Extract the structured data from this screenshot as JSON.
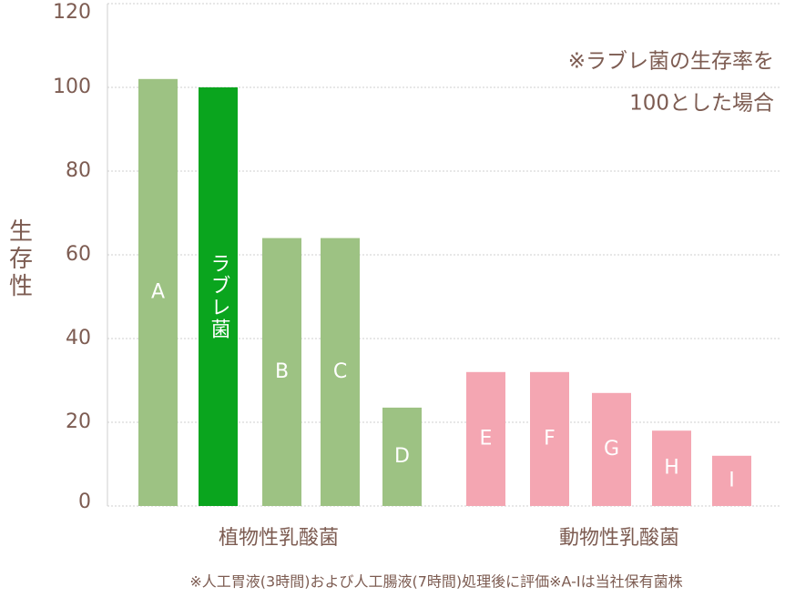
{
  "chart_data": {
    "type": "bar",
    "y_label": "生存性",
    "annotation": [
      "※ラブレ菌の生存率を",
      "100とした場合"
    ],
    "categories": [
      "A",
      "ラブレ菌",
      "B",
      "C",
      "D",
      "E",
      "F",
      "G",
      "H",
      "I"
    ],
    "values": [
      102,
      100,
      64,
      64,
      23.5,
      32,
      32,
      27,
      18,
      12
    ],
    "colors": [
      "#9dc283",
      "#0aa51e",
      "#9dc283",
      "#9dc283",
      "#9dc283",
      "#f4a6b2",
      "#f4a6b2",
      "#f4a6b2",
      "#f4a6b2",
      "#f4a6b2"
    ],
    "groups": [
      "植物性乳酸菌",
      "動物性乳酸菌"
    ],
    "footnote": "※人工胃液(3時間)および人工腸液(7時間)処理後に評価※A-Iは当社保有菌株",
    "ylim": [
      0,
      120
    ],
    "yticks": [
      0,
      20,
      40,
      60,
      80,
      100,
      120
    ],
    "grid": true
  }
}
